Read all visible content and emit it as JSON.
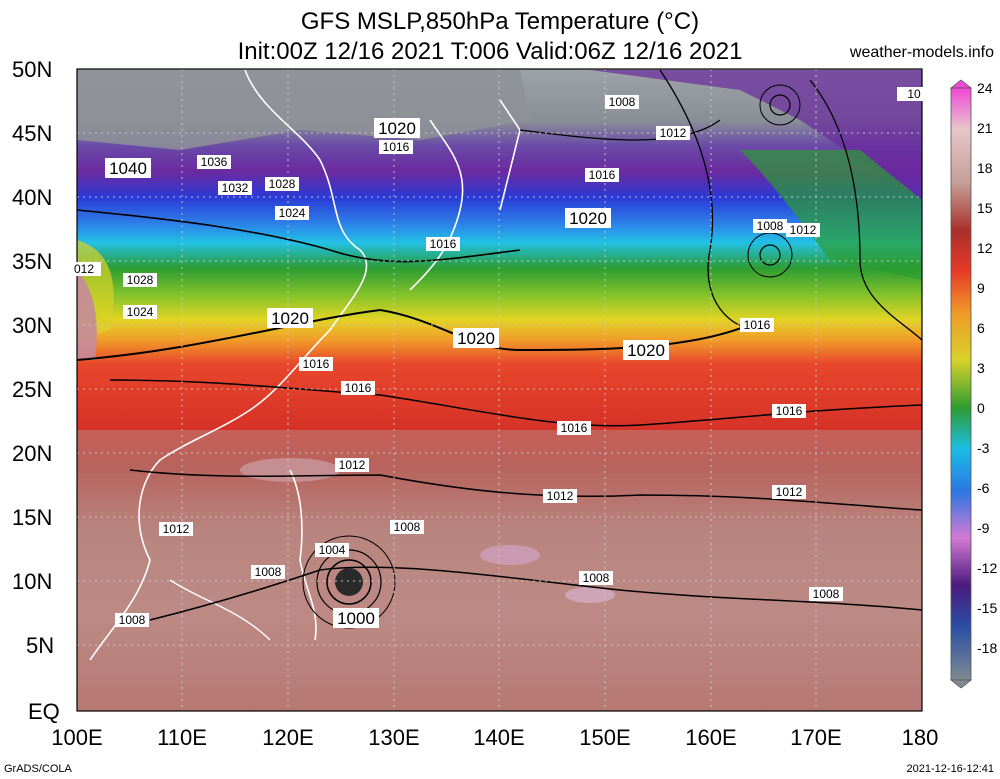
{
  "header": {
    "title": "GFS MSLP,850hPa Temperature (°C)",
    "subtitle": "Init:00Z 12/16 2021 T:006 Valid:06Z 12/16 2021",
    "brand": "weather-models.info"
  },
  "footer": {
    "left": "GrADS/COLA",
    "right": "2021-12-16-12:41"
  },
  "map": {
    "lat_labels": [
      "50N",
      "45N",
      "40N",
      "35N",
      "30N",
      "25N",
      "20N",
      "15N",
      "10N",
      "5N",
      "EQ"
    ],
    "lon_labels": [
      "100E",
      "110E",
      "120E",
      "130E",
      "140E",
      "150E",
      "160E",
      "170E",
      "180"
    ],
    "isobar_labels": [
      {
        "text": "1040",
        "size": "big"
      },
      {
        "text": "1036",
        "size": "small"
      },
      {
        "text": "1032",
        "size": "small"
      },
      {
        "text": "1028",
        "size": "small"
      },
      {
        "text": "1024",
        "size": "small"
      },
      {
        "text": "1020",
        "size": "big"
      },
      {
        "text": "1016",
        "size": "small"
      },
      {
        "text": "1008",
        "size": "small"
      },
      {
        "text": "1012",
        "size": "small"
      },
      {
        "text": "1016",
        "size": "small"
      },
      {
        "text": "1020",
        "size": "big"
      },
      {
        "text": "1008",
        "size": "small"
      },
      {
        "text": "1012",
        "size": "small"
      },
      {
        "text": "1016",
        "size": "small"
      },
      {
        "text": "012",
        "size": "small"
      },
      {
        "text": "1028",
        "size": "small"
      },
      {
        "text": "1024",
        "size": "small"
      },
      {
        "text": "1020",
        "size": "big"
      },
      {
        "text": "1016",
        "size": "small"
      },
      {
        "text": "1020",
        "size": "big"
      },
      {
        "text": "1020",
        "size": "big"
      },
      {
        "text": "1016",
        "size": "small"
      },
      {
        "text": "1016",
        "size": "small"
      },
      {
        "text": "1016",
        "size": "small"
      },
      {
        "text": "1016",
        "size": "small"
      },
      {
        "text": "1012",
        "size": "small"
      },
      {
        "text": "1012",
        "size": "small"
      },
      {
        "text": "1012",
        "size": "small"
      },
      {
        "text": "1012",
        "size": "small"
      },
      {
        "text": "1008",
        "size": "small"
      },
      {
        "text": "1004",
        "size": "small"
      },
      {
        "text": "1008",
        "size": "small"
      },
      {
        "text": "1008",
        "size": "small"
      },
      {
        "text": "1008",
        "size": "small"
      },
      {
        "text": "1000",
        "size": "big"
      },
      {
        "text": "1008",
        "size": "small"
      },
      {
        "text": "10",
        "size": "small"
      }
    ]
  },
  "colorbar": {
    "labels": [
      "24",
      "21",
      "18",
      "15",
      "12",
      "9",
      "6",
      "3",
      "0",
      "-3",
      "-6",
      "-9",
      "-12",
      "-15",
      "-18"
    ],
    "colors": [
      "#f59ae6",
      "#ecc6c8",
      "#c9a39c",
      "#b23a30",
      "#e53a27",
      "#f0a427",
      "#d9d126",
      "#2f9f2e",
      "#19bde3",
      "#2d86e8",
      "#5a3bd0",
      "#b6a3e8",
      "#4b1a7e",
      "#2a4ea5",
      "#7ea6c6",
      "#7f8a92"
    ]
  }
}
